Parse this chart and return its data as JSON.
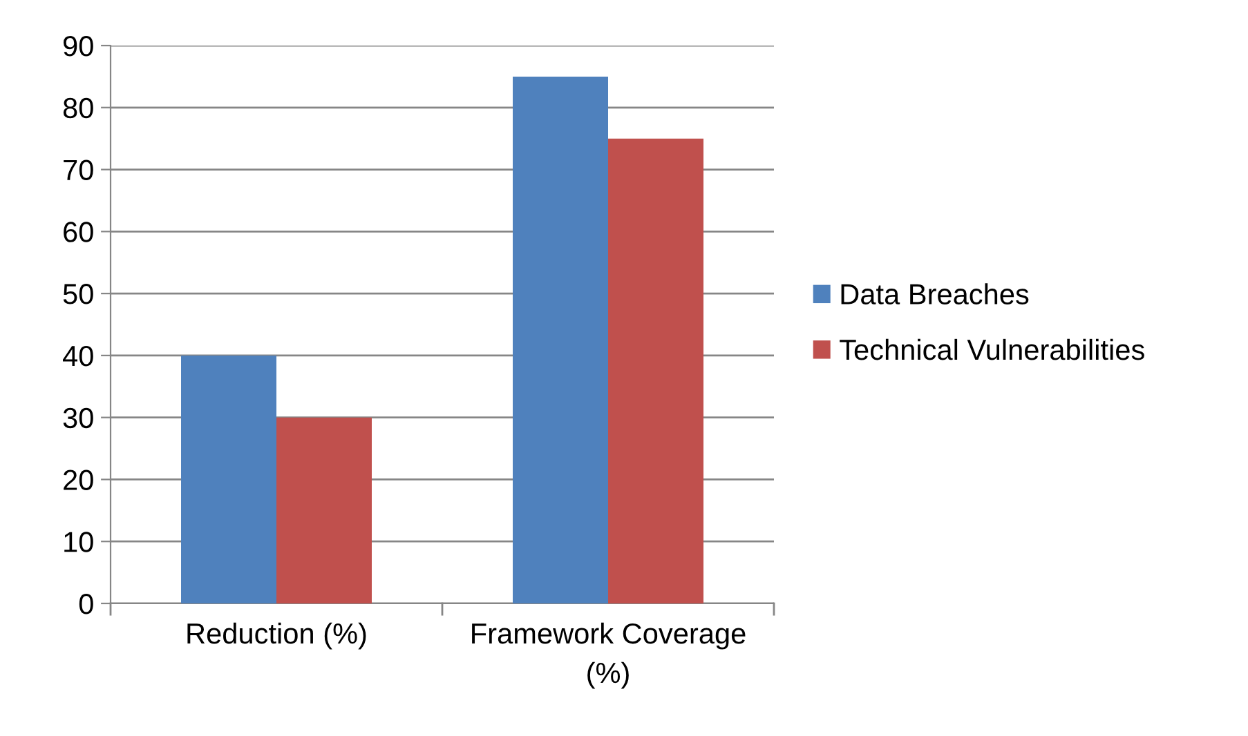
{
  "chart_data": {
    "type": "bar",
    "categories": [
      "Reduction (%)",
      "Framework Coverage (%)"
    ],
    "series": [
      {
        "name": "Data Breaches",
        "color": "#4f81bd",
        "values": [
          40,
          85
        ]
      },
      {
        "name": "Technical Vulnerabilities",
        "color": "#c0504d",
        "values": [
          30,
          75
        ]
      }
    ],
    "ylim": [
      0,
      90
    ],
    "yticks": [
      0,
      10,
      20,
      30,
      40,
      50,
      60,
      70,
      80,
      90
    ],
    "grid": "y",
    "legend": "right"
  }
}
